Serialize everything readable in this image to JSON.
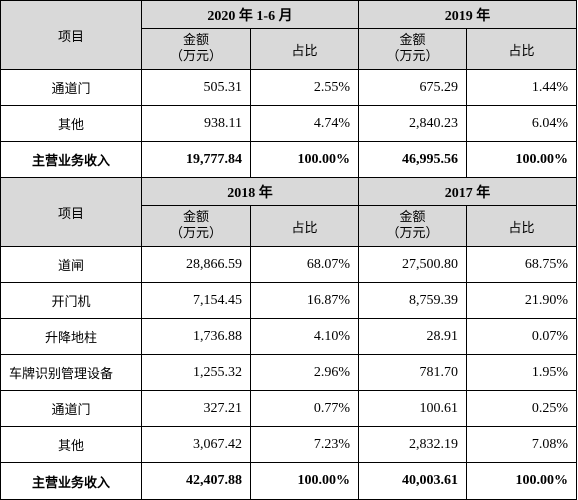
{
  "table": {
    "header_item": "项目",
    "amount_label_line1": "金额",
    "amount_label_line2": "（万元）",
    "ratio_label": "占比",
    "sections": [
      {
        "periods": [
          {
            "label": "2020 年 1-6 月"
          },
          {
            "label": "2019 年"
          }
        ],
        "rows": [
          {
            "item": "通道门",
            "cells": [
              "505.31",
              "2.55%",
              "675.29",
              "1.44%"
            ],
            "bold": false
          },
          {
            "item": "其他",
            "cells": [
              "938.11",
              "4.74%",
              "2,840.23",
              "6.04%"
            ],
            "bold": false
          },
          {
            "item": "主营业务收入",
            "cells": [
              "19,777.84",
              "100.00%",
              "46,995.56",
              "100.00%"
            ],
            "bold": true
          }
        ]
      },
      {
        "periods": [
          {
            "label": "2018 年"
          },
          {
            "label": "2017 年"
          }
        ],
        "rows": [
          {
            "item": "道闸",
            "cells": [
              "28,866.59",
              "68.07%",
              "27,500.80",
              "68.75%"
            ],
            "bold": false
          },
          {
            "item": "开门机",
            "cells": [
              "7,154.45",
              "16.87%",
              "8,759.39",
              "21.90%"
            ],
            "bold": false
          },
          {
            "item": "升降地柱",
            "cells": [
              "1,736.88",
              "4.10%",
              "28.91",
              "0.07%"
            ],
            "bold": false
          },
          {
            "item": "车牌识别管理设备",
            "cells": [
              "1,255.32",
              "2.96%",
              "781.70",
              "1.95%"
            ],
            "bold": false
          },
          {
            "item": "通道门",
            "cells": [
              "327.21",
              "0.77%",
              "100.61",
              "0.25%"
            ],
            "bold": false
          },
          {
            "item": "其他",
            "cells": [
              "3,067.42",
              "7.23%",
              "2,832.19",
              "7.08%"
            ],
            "bold": false
          },
          {
            "item": "主营业务收入",
            "cells": [
              "42,407.88",
              "100.00%",
              "40,003.61",
              "100.00%"
            ],
            "bold": true
          }
        ]
      }
    ]
  }
}
